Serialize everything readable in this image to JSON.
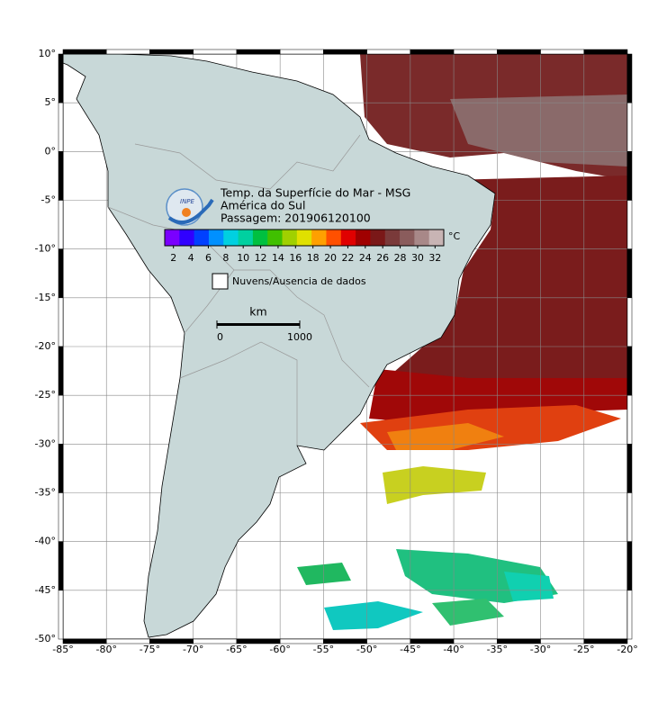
{
  "header": {
    "title": "Temp. da Superfície do Mar - MSG",
    "region": "América do Sul",
    "pass": "Passagem: 201906120100"
  },
  "logo": "INPE",
  "colorbar": {
    "unit": "°C",
    "range": [
      1,
      33
    ],
    "ticks": [
      2,
      4,
      6,
      8,
      10,
      12,
      14,
      16,
      18,
      20,
      22,
      24,
      26,
      28,
      30,
      32
    ],
    "colors": [
      "#7a00ff",
      "#3000ff",
      "#0040ff",
      "#0090ff",
      "#00d0e0",
      "#00d0a0",
      "#00c040",
      "#40c000",
      "#a0d000",
      "#e0e000",
      "#ffa000",
      "#ff5000",
      "#e00000",
      "#a00000",
      "#7a1818",
      "#7a3a3a",
      "#8a5c5c",
      "#a88888",
      "#c8b4b4"
    ]
  },
  "legend": "Nuvens/Ausencia de dados",
  "scale": {
    "unit": "km",
    "ticks": [
      0,
      1000
    ]
  },
  "map": {
    "xlim": [
      -85,
      -20
    ],
    "ylim": [
      -50,
      10
    ],
    "xticks": [
      {
        "value": -85,
        "label": "-85°"
      },
      {
        "value": -80,
        "label": "-80°"
      },
      {
        "value": -75,
        "label": "-75°"
      },
      {
        "value": -70,
        "label": "-70°"
      },
      {
        "value": -65,
        "label": "-65°"
      },
      {
        "value": -60,
        "label": "-60°"
      },
      {
        "value": -55,
        "label": "-55°"
      },
      {
        "value": -50,
        "label": "-50°"
      },
      {
        "value": -45,
        "label": "-45°"
      },
      {
        "value": -40,
        "label": "-40°"
      },
      {
        "value": -35,
        "label": "-35°"
      },
      {
        "value": -30,
        "label": "-30°"
      },
      {
        "value": -25,
        "label": "-25°"
      },
      {
        "value": -20,
        "label": "-20°"
      }
    ],
    "yticks": [
      {
        "value": 10,
        "label": "10°"
      },
      {
        "value": 5,
        "label": "5°"
      },
      {
        "value": 0,
        "label": "0°"
      },
      {
        "value": -5,
        "label": "-5°"
      },
      {
        "value": -10,
        "label": "-10°"
      },
      {
        "value": -15,
        "label": "-15°"
      },
      {
        "value": -20,
        "label": "-20°"
      },
      {
        "value": -25,
        "label": "-25°"
      },
      {
        "value": -30,
        "label": "-30°"
      },
      {
        "value": -35,
        "label": "-35°"
      },
      {
        "value": -40,
        "label": "-40°"
      },
      {
        "value": -45,
        "label": "-45°"
      },
      {
        "value": -50,
        "label": "-50°"
      }
    ]
  }
}
